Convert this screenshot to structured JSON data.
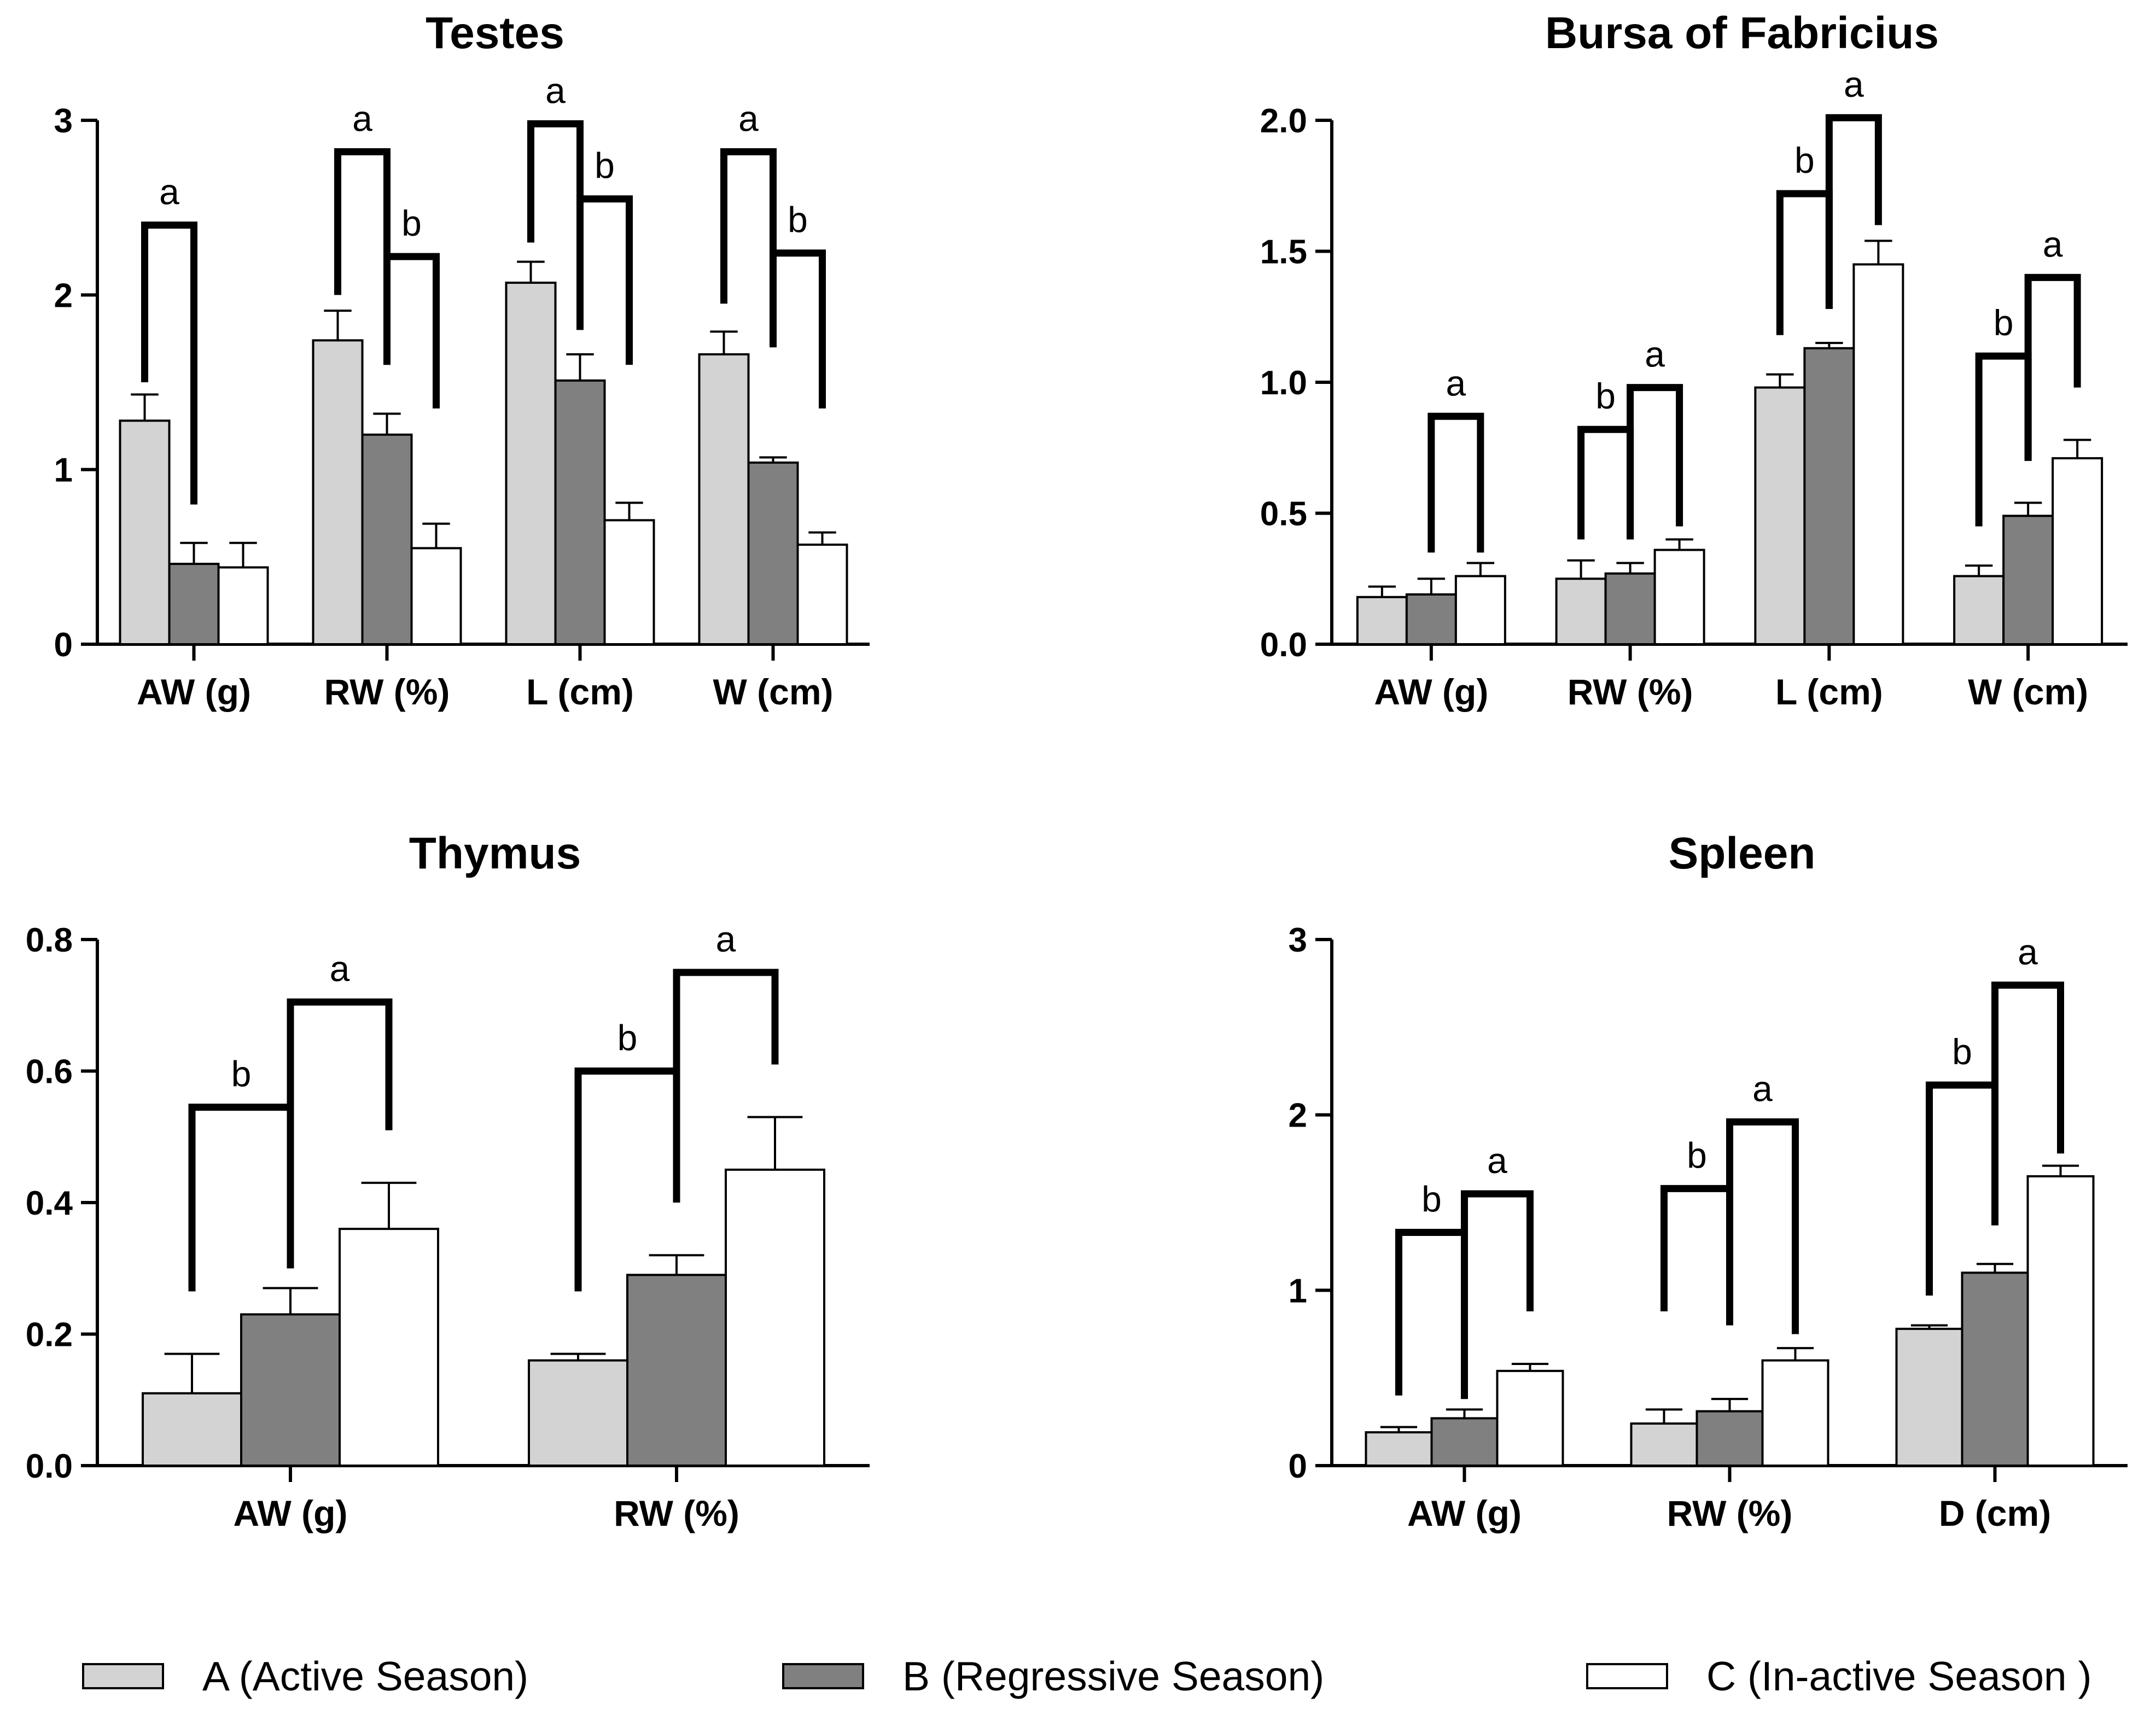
{
  "colors": {
    "A": "#d3d3d3",
    "B": "#808080",
    "C": "#ffffff"
  },
  "legend": [
    {
      "key": "A",
      "label": "A (Active Season)"
    },
    {
      "key": "B",
      "label": "B (Regressive Season)"
    },
    {
      "key": "C",
      "label": "C (In-active Season )"
    }
  ],
  "chart_data": [
    {
      "id": "testes",
      "type": "bar",
      "title": "Testes",
      "categories": [
        "AW (g)",
        "RW (%)",
        "L (cm)",
        "W (cm)"
      ],
      "ylim": [
        0,
        3
      ],
      "yticks": [
        0,
        1,
        2,
        3
      ],
      "ytick_labels": [
        "0",
        "1",
        "2",
        "3"
      ],
      "series": [
        {
          "name": "A",
          "values": [
            1.28,
            1.74,
            2.07,
            1.66
          ],
          "errors": [
            0.15,
            0.17,
            0.12,
            0.13
          ]
        },
        {
          "name": "B",
          "values": [
            0.46,
            1.2,
            1.51,
            1.04
          ],
          "errors": [
            0.12,
            0.12,
            0.15,
            0.03
          ]
        },
        {
          "name": "C",
          "values": [
            0.44,
            0.55,
            0.71,
            0.57
          ],
          "errors": [
            0.14,
            0.14,
            0.1,
            0.07
          ]
        }
      ],
      "brackets": [
        {
          "cat": 0,
          "from": 0,
          "to": 1,
          "top": 2.4,
          "fromEnd": 1.5,
          "toEnd": 0.8,
          "label": "a"
        },
        {
          "cat": 1,
          "from": 0,
          "to": 1,
          "top": 2.82,
          "fromEnd": 2.0,
          "toEnd": 1.6,
          "label": "a"
        },
        {
          "cat": 1,
          "from": 1,
          "to": 2,
          "top": 2.22,
          "fromEnd": 1.6,
          "toEnd": 1.35,
          "label": "b"
        },
        {
          "cat": 2,
          "from": 0,
          "to": 1,
          "top": 2.98,
          "fromEnd": 2.3,
          "toEnd": 1.8,
          "label": "a"
        },
        {
          "cat": 2,
          "from": 1,
          "to": 2,
          "top": 2.55,
          "fromEnd": 1.8,
          "toEnd": 1.6,
          "label": "b"
        },
        {
          "cat": 3,
          "from": 0,
          "to": 1,
          "top": 2.82,
          "fromEnd": 1.95,
          "toEnd": 1.7,
          "label": "a"
        },
        {
          "cat": 3,
          "from": 1,
          "to": 2,
          "top": 2.24,
          "fromEnd": 1.7,
          "toEnd": 1.35,
          "label": "b"
        }
      ]
    },
    {
      "id": "bursa",
      "type": "bar",
      "title": "Bursa of Fabricius",
      "categories": [
        "AW (g)",
        "RW (%)",
        "L (cm)",
        "W (cm)"
      ],
      "ylim": [
        0,
        2.0
      ],
      "yticks": [
        0,
        0.5,
        1.0,
        1.5,
        2.0
      ],
      "ytick_labels": [
        "0.0",
        "0.5",
        "1.0",
        "1.5",
        "2.0"
      ],
      "series": [
        {
          "name": "A",
          "values": [
            0.18,
            0.25,
            0.98,
            0.26
          ],
          "errors": [
            0.04,
            0.07,
            0.05,
            0.04
          ]
        },
        {
          "name": "B",
          "values": [
            0.19,
            0.27,
            1.13,
            0.49
          ],
          "errors": [
            0.06,
            0.04,
            0.02,
            0.05
          ]
        },
        {
          "name": "C",
          "values": [
            0.26,
            0.36,
            1.45,
            0.71
          ],
          "errors": [
            0.05,
            0.04,
            0.09,
            0.07
          ]
        }
      ],
      "brackets": [
        {
          "cat": 0,
          "from": 1,
          "to": 2,
          "top": 0.87,
          "fromEnd": 0.35,
          "toEnd": 0.35,
          "label": "a"
        },
        {
          "cat": 1,
          "from": 0,
          "to": 1,
          "top": 0.82,
          "fromEnd": 0.4,
          "toEnd": 0.4,
          "label": "b"
        },
        {
          "cat": 1,
          "from": 1,
          "to": 2,
          "top": 0.98,
          "fromEnd": 0.4,
          "toEnd": 0.45,
          "label": "a"
        },
        {
          "cat": 2,
          "from": 0,
          "to": 1,
          "top": 1.72,
          "fromEnd": 1.18,
          "toEnd": 1.28,
          "label": "b"
        },
        {
          "cat": 2,
          "from": 1,
          "to": 2,
          "top": 2.01,
          "fromEnd": 1.28,
          "toEnd": 1.6,
          "label": "a"
        },
        {
          "cat": 3,
          "from": 0,
          "to": 1,
          "top": 1.1,
          "fromEnd": 0.45,
          "toEnd": 0.7,
          "label": "b"
        },
        {
          "cat": 3,
          "from": 1,
          "to": 2,
          "top": 1.4,
          "fromEnd": 0.7,
          "toEnd": 0.98,
          "label": "a"
        }
      ]
    },
    {
      "id": "thymus",
      "type": "bar",
      "title": "Thymus",
      "categories": [
        "AW (g)",
        "RW (%)"
      ],
      "ylim": [
        0,
        0.8
      ],
      "yticks": [
        0,
        0.2,
        0.4,
        0.6,
        0.8
      ],
      "ytick_labels": [
        "0.0",
        "0.2",
        "0.4",
        "0.6",
        "0.8"
      ],
      "series": [
        {
          "name": "A",
          "values": [
            0.11,
            0.16
          ],
          "errors": [
            0.06,
            0.01
          ]
        },
        {
          "name": "B",
          "values": [
            0.23,
            0.29
          ],
          "errors": [
            0.04,
            0.03
          ]
        },
        {
          "name": "C",
          "values": [
            0.36,
            0.45
          ],
          "errors": [
            0.07,
            0.08
          ]
        }
      ],
      "brackets": [
        {
          "cat": 0,
          "from": 0,
          "to": 1,
          "top": 0.545,
          "fromEnd": 0.265,
          "toEnd": 0.3,
          "label": "b"
        },
        {
          "cat": 0,
          "from": 1,
          "to": 2,
          "top": 0.705,
          "fromEnd": 0.3,
          "toEnd": 0.51,
          "label": "a"
        },
        {
          "cat": 1,
          "from": 0,
          "to": 1,
          "top": 0.6,
          "fromEnd": 0.265,
          "toEnd": 0.4,
          "label": "b"
        },
        {
          "cat": 1,
          "from": 1,
          "to": 2,
          "top": 0.75,
          "fromEnd": 0.4,
          "toEnd": 0.61,
          "label": "a"
        }
      ]
    },
    {
      "id": "spleen",
      "type": "bar",
      "title": "Spleen",
      "categories": [
        "AW (g)",
        "RW (%)",
        "D (cm)"
      ],
      "ylim": [
        0,
        3
      ],
      "yticks": [
        0,
        1,
        2,
        3
      ],
      "ytick_labels": [
        "0",
        "1",
        "2",
        "3"
      ],
      "series": [
        {
          "name": "A",
          "values": [
            0.19,
            0.24,
            0.78
          ],
          "errors": [
            0.03,
            0.08,
            0.02
          ]
        },
        {
          "name": "B",
          "values": [
            0.27,
            0.31,
            1.1
          ],
          "errors": [
            0.05,
            0.07,
            0.05
          ]
        },
        {
          "name": "C",
          "values": [
            0.54,
            0.6,
            1.65
          ],
          "errors": [
            0.04,
            0.07,
            0.06
          ]
        }
      ],
      "brackets": [
        {
          "cat": 0,
          "from": 0,
          "to": 1,
          "top": 1.33,
          "fromEnd": 0.4,
          "toEnd": 0.38,
          "label": "b"
        },
        {
          "cat": 0,
          "from": 1,
          "to": 2,
          "top": 1.55,
          "fromEnd": 0.38,
          "toEnd": 0.88,
          "label": "a"
        },
        {
          "cat": 1,
          "from": 0,
          "to": 1,
          "top": 1.58,
          "fromEnd": 0.88,
          "toEnd": 0.8,
          "label": "b"
        },
        {
          "cat": 1,
          "from": 1,
          "to": 2,
          "top": 1.96,
          "fromEnd": 0.8,
          "toEnd": 0.75,
          "label": "a"
        },
        {
          "cat": 2,
          "from": 0,
          "to": 1,
          "top": 2.17,
          "fromEnd": 0.97,
          "toEnd": 1.37,
          "label": "b"
        },
        {
          "cat": 2,
          "from": 1,
          "to": 2,
          "top": 2.74,
          "fromEnd": 1.37,
          "toEnd": 1.78,
          "label": "a"
        }
      ]
    }
  ]
}
